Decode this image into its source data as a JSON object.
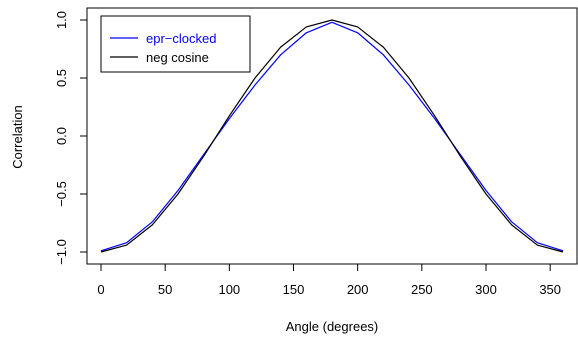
{
  "chart_data": {
    "type": "line",
    "title": "",
    "xlabel": "Angle (degrees)",
    "ylabel": "Correlation",
    "xlim": [
      0,
      360
    ],
    "ylim": [
      -1,
      1
    ],
    "xticks": [
      0,
      50,
      100,
      150,
      200,
      250,
      300,
      350
    ],
    "yticks": [
      -1.0,
      -0.5,
      0.0,
      0.5,
      1.0
    ],
    "ytick_labels": [
      "−1.0",
      "−0.5",
      "0.0",
      "0.5",
      "1.0"
    ],
    "grid": false,
    "legend_position": "top-left",
    "series": [
      {
        "name": "epr−clocked",
        "color": "#0000ff",
        "x": [
          0,
          20,
          40,
          60,
          80,
          100,
          120,
          140,
          160,
          180,
          200,
          220,
          240,
          260,
          280,
          300,
          320,
          340,
          360
        ],
        "y": [
          -0.99,
          -0.92,
          -0.74,
          -0.47,
          -0.16,
          0.15,
          0.44,
          0.7,
          0.89,
          0.98,
          0.89,
          0.7,
          0.44,
          0.15,
          -0.16,
          -0.47,
          -0.74,
          -0.92,
          -0.99
        ]
      },
      {
        "name": "neg cosine",
        "color": "#000000",
        "x": [
          0,
          20,
          40,
          60,
          80,
          100,
          120,
          140,
          160,
          180,
          200,
          220,
          240,
          260,
          280,
          300,
          320,
          340,
          360
        ],
        "y": [
          -1.0,
          -0.94,
          -0.766,
          -0.5,
          -0.174,
          0.174,
          0.5,
          0.766,
          0.94,
          1.0,
          0.94,
          0.766,
          0.5,
          0.174,
          -0.174,
          -0.5,
          -0.766,
          -0.94,
          -1.0
        ]
      }
    ]
  }
}
